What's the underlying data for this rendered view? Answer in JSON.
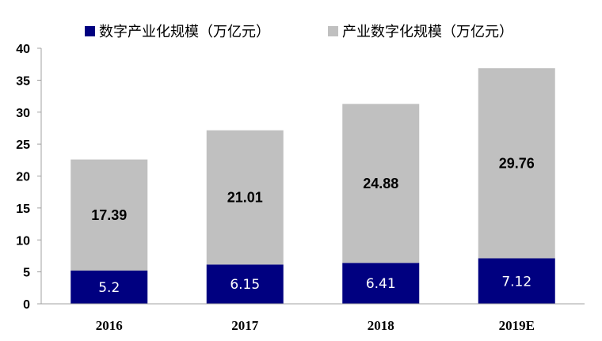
{
  "chart_data": {
    "type": "bar",
    "stacked": true,
    "categories": [
      "2016",
      "2017",
      "2018",
      "2019E"
    ],
    "series": [
      {
        "name": "数字产业化规模（万亿元）",
        "values": [
          5.2,
          6.15,
          6.41,
          7.12
        ],
        "color": "#000080",
        "data_labels": [
          "5.2",
          "6.15",
          "6.41",
          "7.12"
        ]
      },
      {
        "name": "产业数字化规模（万亿元）",
        "values": [
          17.39,
          21.01,
          24.88,
          29.76
        ],
        "color": "#c0c0c0",
        "data_labels": [
          "17.39",
          "21.01",
          "24.88",
          "29.76"
        ]
      }
    ],
    "ylim": [
      0,
      40
    ],
    "yticks": [
      "0",
      "5",
      "10",
      "15",
      "20",
      "25",
      "30",
      "35",
      "40"
    ],
    "legend_position": "top",
    "grid": false
  }
}
